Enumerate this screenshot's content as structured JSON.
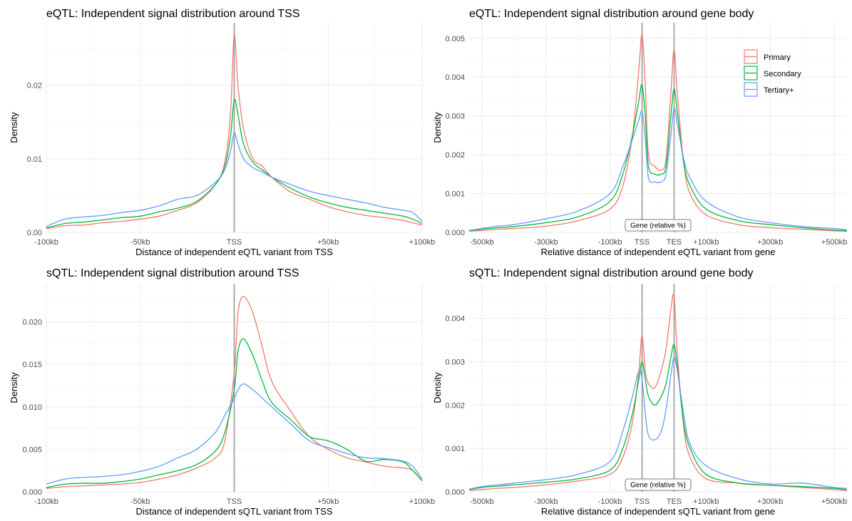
{
  "colors": {
    "Primary": "#F8766D",
    "Secondary": "#00BA38",
    "Tertiary+": "#619CFF"
  },
  "legend": [
    "Primary",
    "Secondary",
    "Tertiary+"
  ],
  "chart_data": [
    {
      "id": "eqtl_tss",
      "type": "line",
      "title": "eQTL: Independent signal distribution around TSS",
      "xlabel": "Distance of independent eQTL variant from TSS",
      "ylabel": "Density",
      "xticks": [
        "-100kb",
        "-50kb",
        "TSS",
        "+50kb",
        "+100kb"
      ],
      "yticks": [
        "0.00",
        "0.01",
        "0.02"
      ],
      "xlim": [
        -100,
        100
      ],
      "ylim": [
        0,
        0.0285
      ],
      "ytick_values": [
        0,
        0.01,
        0.02
      ],
      "vlines": [
        0
      ],
      "series": [
        {
          "name": "Primary",
          "x": [
            -100,
            -90,
            -80,
            -70,
            -60,
            -50,
            -40,
            -30,
            -20,
            -10,
            -5,
            -2,
            0,
            2,
            5,
            10,
            15,
            20,
            30,
            40,
            50,
            60,
            70,
            80,
            90,
            95,
            100
          ],
          "y": [
            0.0005,
            0.0009,
            0.001,
            0.0013,
            0.0015,
            0.0018,
            0.0022,
            0.003,
            0.004,
            0.0065,
            0.0095,
            0.016,
            0.0268,
            0.02,
            0.014,
            0.01,
            0.009,
            0.0075,
            0.0055,
            0.0045,
            0.0035,
            0.0028,
            0.0023,
            0.002,
            0.0016,
            0.0013,
            0.001
          ]
        },
        {
          "name": "Secondary",
          "x": [
            -100,
            -90,
            -80,
            -70,
            -60,
            -50,
            -40,
            -30,
            -20,
            -10,
            -5,
            -2,
            0,
            2,
            5,
            10,
            15,
            20,
            30,
            40,
            50,
            60,
            70,
            80,
            90,
            95,
            100
          ],
          "y": [
            0.0006,
            0.0012,
            0.0014,
            0.0017,
            0.002,
            0.0022,
            0.0028,
            0.0033,
            0.0042,
            0.0065,
            0.009,
            0.013,
            0.018,
            0.016,
            0.012,
            0.0095,
            0.0085,
            0.0075,
            0.006,
            0.0048,
            0.004,
            0.0034,
            0.003,
            0.0026,
            0.0022,
            0.0018,
            0.0012
          ]
        },
        {
          "name": "Tertiary+",
          "x": [
            -100,
            -90,
            -80,
            -70,
            -60,
            -50,
            -40,
            -30,
            -20,
            -10,
            -5,
            -2,
            0,
            2,
            5,
            10,
            15,
            20,
            30,
            40,
            50,
            60,
            70,
            80,
            90,
            95,
            100
          ],
          "y": [
            0.0008,
            0.0018,
            0.0021,
            0.0023,
            0.0027,
            0.003,
            0.0036,
            0.0045,
            0.005,
            0.0068,
            0.0085,
            0.011,
            0.0135,
            0.012,
            0.01,
            0.0088,
            0.0082,
            0.0075,
            0.0065,
            0.0056,
            0.005,
            0.0045,
            0.004,
            0.0034,
            0.003,
            0.0027,
            0.0015
          ]
        }
      ]
    },
    {
      "id": "eqtl_body",
      "type": "line",
      "title": "eQTL: Independent signal distribution around gene body",
      "xlabel": "Relative distance of independent eQTL variant from gene",
      "ylabel": "Density",
      "xticks": [
        "-500kb",
        "-300kb",
        "-100kb",
        "TSS",
        "TES",
        "+100kb",
        "+300kb",
        "+500kb"
      ],
      "xtick_positions": [
        -500,
        -300,
        -100,
        0,
        100,
        200,
        400,
        600
      ],
      "yticks": [
        "0.000",
        "0.001",
        "0.002",
        "0.003",
        "0.004",
        "0.005"
      ],
      "ytick_values": [
        0,
        0.001,
        0.002,
        0.003,
        0.004,
        0.005
      ],
      "xlim": [
        -540,
        640
      ],
      "ylim": [
        0,
        0.0054
      ],
      "vlines": [
        0,
        100
      ],
      "annotation": "Gene (relative %)",
      "series": [
        {
          "name": "Primary",
          "x": [
            -540,
            -500,
            -450,
            -400,
            -300,
            -200,
            -100,
            -60,
            -30,
            -10,
            0,
            10,
            20,
            40,
            60,
            75,
            90,
            100,
            110,
            130,
            150,
            200,
            300,
            400,
            500,
            600,
            640
          ],
          "y": [
            3e-05,
            5e-05,
            8e-05,
            0.0001,
            0.00016,
            0.0003,
            0.0006,
            0.0012,
            0.0025,
            0.0042,
            0.0051,
            0.0038,
            0.002,
            0.0017,
            0.0016,
            0.0019,
            0.0036,
            0.0047,
            0.0036,
            0.0018,
            0.001,
            0.00045,
            0.0002,
            0.00012,
            8e-05,
            4e-05,
            3e-05
          ]
        },
        {
          "name": "Secondary",
          "x": [
            -540,
            -500,
            -450,
            -400,
            -300,
            -200,
            -100,
            -60,
            -30,
            -10,
            0,
            10,
            20,
            40,
            60,
            75,
            90,
            100,
            110,
            130,
            150,
            200,
            300,
            400,
            500,
            600,
            640
          ],
          "y": [
            4e-05,
            8e-05,
            0.00012,
            0.00015,
            0.00025,
            0.0004,
            0.0008,
            0.0015,
            0.0025,
            0.0034,
            0.0038,
            0.003,
            0.0017,
            0.0015,
            0.0015,
            0.0017,
            0.003,
            0.0037,
            0.0031,
            0.0018,
            0.0012,
            0.0006,
            0.0003,
            0.0002,
            0.00012,
            6e-05,
            4e-05
          ]
        },
        {
          "name": "Tertiary+",
          "x": [
            -540,
            -500,
            -450,
            -400,
            -300,
            -200,
            -100,
            -60,
            -30,
            -10,
            0,
            10,
            20,
            40,
            60,
            75,
            90,
            100,
            110,
            130,
            150,
            200,
            300,
            400,
            500,
            600,
            640
          ],
          "y": [
            5e-05,
            0.0001,
            0.00016,
            0.0002,
            0.00035,
            0.00055,
            0.001,
            0.0017,
            0.0024,
            0.0029,
            0.0031,
            0.0024,
            0.0014,
            0.0013,
            0.0013,
            0.0015,
            0.0025,
            0.0032,
            0.0028,
            0.0019,
            0.0014,
            0.0008,
            0.0004,
            0.00025,
            0.00015,
            0.0001,
            6e-05
          ]
        }
      ]
    },
    {
      "id": "sqtl_tss",
      "type": "line",
      "title": "sQTL: Independent signal distribution around TSS",
      "xlabel": "Distance of independent sQTL variant from TSS",
      "ylabel": "Density",
      "xticks": [
        "-100kb",
        "-50kb",
        "TSS",
        "+50kb",
        "+100kb"
      ],
      "yticks": [
        "0.000",
        "0.005",
        "0.010",
        "0.015",
        "0.020"
      ],
      "ytick_values": [
        0,
        0.005,
        0.01,
        0.015,
        0.02
      ],
      "xlim": [
        -100,
        100
      ],
      "ylim": [
        0,
        0.0245
      ],
      "vlines": [
        0
      ],
      "series": [
        {
          "name": "Primary",
          "x": [
            -100,
            -90,
            -80,
            -70,
            -60,
            -50,
            -40,
            -30,
            -20,
            -10,
            -5,
            0,
            2,
            5,
            10,
            15,
            20,
            30,
            40,
            50,
            60,
            70,
            80,
            90,
            95,
            100
          ],
          "y": [
            0.0004,
            0.0006,
            0.0007,
            0.0008,
            0.0009,
            0.0011,
            0.0015,
            0.002,
            0.0028,
            0.004,
            0.006,
            0.014,
            0.021,
            0.023,
            0.021,
            0.017,
            0.013,
            0.0095,
            0.0065,
            0.005,
            0.004,
            0.0035,
            0.003,
            0.0028,
            0.0025,
            0.0013
          ]
        },
        {
          "name": "Secondary",
          "x": [
            -100,
            -90,
            -80,
            -70,
            -60,
            -50,
            -40,
            -30,
            -20,
            -10,
            -5,
            0,
            2,
            5,
            10,
            15,
            20,
            30,
            40,
            50,
            60,
            70,
            80,
            90,
            95,
            100
          ],
          "y": [
            0.0005,
            0.0009,
            0.001,
            0.001,
            0.0012,
            0.0015,
            0.002,
            0.0025,
            0.0032,
            0.0048,
            0.007,
            0.012,
            0.0165,
            0.018,
            0.016,
            0.013,
            0.0105,
            0.0085,
            0.0065,
            0.006,
            0.005,
            0.0036,
            0.0038,
            0.0035,
            0.0025,
            0.0013
          ]
        },
        {
          "name": "Tertiary+",
          "x": [
            -100,
            -90,
            -80,
            -70,
            -60,
            -50,
            -40,
            -30,
            -20,
            -10,
            -5,
            0,
            2,
            5,
            10,
            15,
            20,
            30,
            40,
            50,
            60,
            70,
            80,
            90,
            95,
            100
          ],
          "y": [
            0.0009,
            0.0015,
            0.0017,
            0.0018,
            0.002,
            0.0024,
            0.003,
            0.004,
            0.005,
            0.007,
            0.009,
            0.011,
            0.012,
            0.0127,
            0.012,
            0.011,
            0.01,
            0.008,
            0.006,
            0.0052,
            0.0045,
            0.004,
            0.0039,
            0.0036,
            0.003,
            0.0015
          ]
        }
      ]
    },
    {
      "id": "sqtl_body",
      "type": "line",
      "title": "sQTL: Independent signal distribution around gene body",
      "xlabel": "Relative distance of independent sQTL variant from gene",
      "ylabel": "Density",
      "xticks": [
        "-500kb",
        "-300kb",
        "-100kb",
        "TSS",
        "TES",
        "+100kb",
        "+300kb",
        "+500kb"
      ],
      "xtick_positions": [
        -500,
        -300,
        -100,
        0,
        100,
        200,
        400,
        600
      ],
      "yticks": [
        "0.000",
        "0.001",
        "0.002",
        "0.003",
        "0.004"
      ],
      "ytick_values": [
        0,
        0.001,
        0.002,
        0.003,
        0.004
      ],
      "xlim": [
        -540,
        640
      ],
      "ylim": [
        0,
        0.0048
      ],
      "vlines": [
        0,
        100
      ],
      "annotation": "Gene (relative %)",
      "series": [
        {
          "name": "Primary",
          "x": [
            -540,
            -500,
            -450,
            -400,
            -300,
            -200,
            -100,
            -60,
            -30,
            -10,
            0,
            10,
            20,
            40,
            60,
            75,
            90,
            100,
            110,
            130,
            150,
            200,
            300,
            400,
            500,
            600,
            640
          ],
          "y": [
            3e-05,
            5e-05,
            8e-05,
            0.0001,
            0.00016,
            0.00025,
            0.0004,
            0.0008,
            0.0016,
            0.0028,
            0.0036,
            0.0028,
            0.0025,
            0.0024,
            0.0028,
            0.0033,
            0.0042,
            0.0045,
            0.0032,
            0.0015,
            0.0008,
            0.0003,
            0.0002,
            0.00015,
            0.0001,
            5e-05,
            3e-05
          ]
        },
        {
          "name": "Secondary",
          "x": [
            -540,
            -500,
            -450,
            -400,
            -300,
            -200,
            -100,
            -60,
            -30,
            -10,
            0,
            10,
            20,
            40,
            60,
            75,
            90,
            100,
            110,
            130,
            150,
            200,
            300,
            400,
            500,
            600,
            640
          ],
          "y": [
            5e-05,
            0.0001,
            0.00013,
            0.00016,
            0.00022,
            0.0003,
            0.0005,
            0.001,
            0.0018,
            0.0026,
            0.003,
            0.0026,
            0.0022,
            0.002,
            0.0022,
            0.0025,
            0.0031,
            0.0034,
            0.0029,
            0.0016,
            0.001,
            0.0004,
            0.0002,
            0.00015,
            0.00012,
            8e-05,
            5e-05
          ]
        },
        {
          "name": "Tertiary+",
          "x": [
            -540,
            -500,
            -450,
            -400,
            -300,
            -200,
            -100,
            -60,
            -30,
            -10,
            0,
            10,
            20,
            40,
            60,
            75,
            90,
            100,
            110,
            130,
            150,
            200,
            300,
            400,
            500,
            600,
            640
          ],
          "y": [
            6e-05,
            0.00012,
            0.00016,
            0.0002,
            0.00028,
            0.0004,
            0.0007,
            0.0014,
            0.0022,
            0.0028,
            0.0026,
            0.0018,
            0.0013,
            0.0012,
            0.0014,
            0.0019,
            0.0027,
            0.0031,
            0.0028,
            0.0018,
            0.0011,
            0.0006,
            0.0003,
            0.00018,
            0.0002,
            0.0001,
            8e-05
          ]
        }
      ]
    }
  ]
}
